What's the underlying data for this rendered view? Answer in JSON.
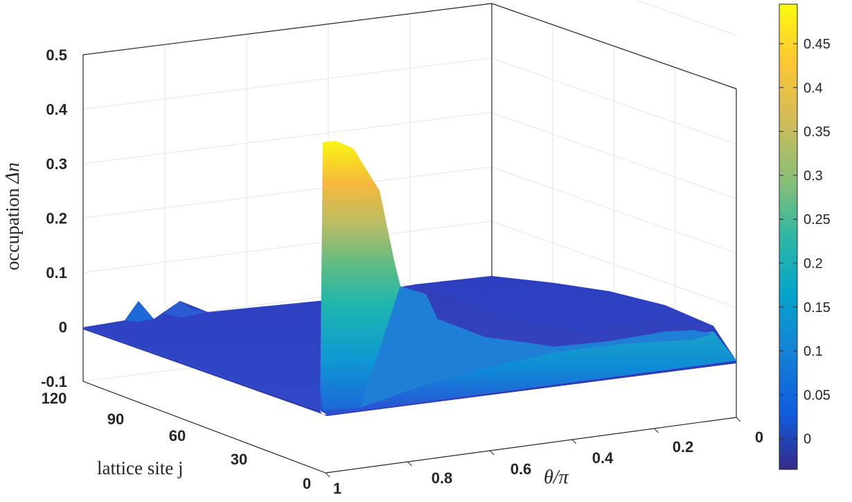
{
  "chart_data": {
    "type": "surface",
    "zlabel_prefix": "occupation ",
    "zlabel_symbol": "Δn",
    "ylabel": "lattice site j",
    "xlabel": "θ/π",
    "x_ticks": [
      "1",
      "0.8",
      "0.6",
      "0.4",
      "0.2",
      "0"
    ],
    "y_ticks": [
      "0",
      "30",
      "60",
      "90",
      "120"
    ],
    "z_ticks": [
      "-0.1",
      "0",
      "0.1",
      "0.2",
      "0.3",
      "0.4",
      "0.5"
    ],
    "x_range": [
      0,
      1
    ],
    "y_range": [
      0,
      120
    ],
    "z_range": [
      -0.1,
      0.5
    ],
    "grid": true,
    "colormap": "parula",
    "colorbar": {
      "ticks": [
        "0",
        "0.05",
        "0.1",
        "0.15",
        "0.2",
        "0.25",
        "0.3",
        "0.35",
        "0.4",
        "0.45"
      ],
      "range": [
        -0.035,
        0.495
      ]
    },
    "peak": {
      "theta_over_pi": 0.72,
      "lattice_site": 5,
      "value": 0.34
    },
    "front_edge_profile": [
      {
        "theta_over_pi": 1.0,
        "value": 0.0
      },
      {
        "theta_over_pi": 0.72,
        "value": 0.33
      },
      {
        "theta_over_pi": 0.65,
        "value": 0.1
      },
      {
        "theta_over_pi": 0.6,
        "value": 0.02
      },
      {
        "theta_over_pi": 0.5,
        "value": -0.005
      },
      {
        "theta_over_pi": 0.3,
        "value": 0.02
      },
      {
        "theta_over_pi": 0.0,
        "value": -0.005
      }
    ],
    "left_edge_profile": [
      {
        "lattice_site": 0,
        "value": 0.0
      },
      {
        "lattice_site": 108,
        "value": 0.045
      },
      {
        "lattice_site": 100,
        "value": 0.045
      },
      {
        "lattice_site": 120,
        "value": 0.0
      }
    ]
  }
}
